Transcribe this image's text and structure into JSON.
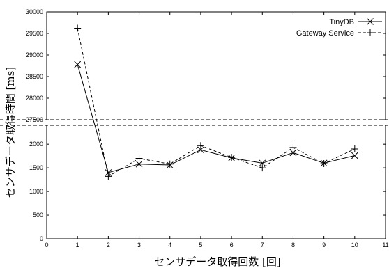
{
  "chart_data": {
    "type": "line",
    "xlabel": "センサデータ取得回数 [回]",
    "ylabel": "センサデータ取得時間 [ms]",
    "xlim": [
      0,
      11
    ],
    "x_ticks": [
      "0",
      "1",
      "2",
      "3",
      "4",
      "5",
      "6",
      "7",
      "8",
      "9",
      "10",
      "11"
    ],
    "y_axis_broken": true,
    "y_segments": [
      {
        "range": [
          0,
          2500
        ],
        "ticks": [
          "0",
          "500",
          "1000",
          "1500",
          "2000"
        ]
      },
      {
        "range": [
          27500,
          30000
        ],
        "ticks": [
          "27500",
          "28000",
          "28500",
          "29000",
          "29500",
          "30000"
        ]
      }
    ],
    "grid": false,
    "legend_position": "top-right",
    "x": [
      1,
      2,
      3,
      4,
      5,
      6,
      7,
      8,
      9,
      10
    ],
    "series": [
      {
        "name": "TinyDB",
        "marker": "x",
        "line_style": "solid",
        "values": [
          28780,
          1400,
          1580,
          1560,
          1880,
          1710,
          1600,
          1820,
          1600,
          1760
        ]
      },
      {
        "name": "Gateway Service",
        "marker": "+",
        "line_style": "dashed",
        "values": [
          29620,
          1320,
          1700,
          1580,
          1970,
          1720,
          1500,
          1930,
          1590,
          1900
        ]
      }
    ]
  }
}
